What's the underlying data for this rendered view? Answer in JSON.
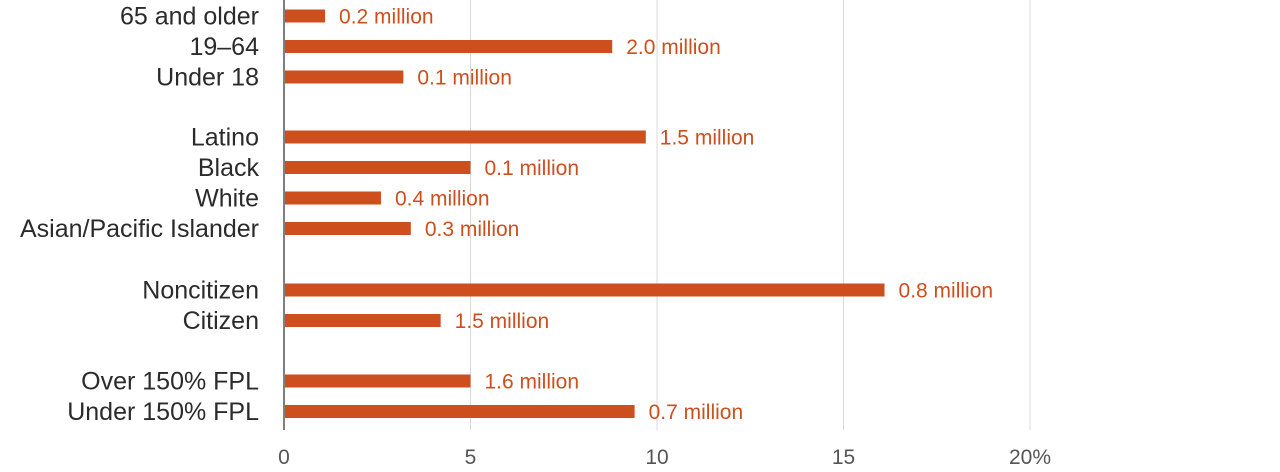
{
  "colors": {
    "bar": "#cd4f1e",
    "value_label": "#cd4f1e",
    "gridline": "#d9d9d9",
    "axis": "#555555",
    "category_label": "#2b2b2b",
    "tick_label": "#555555"
  },
  "chart_data": {
    "type": "bar",
    "orientation": "horizontal",
    "title": "",
    "xlabel": "",
    "ylabel": "",
    "xlim": [
      0,
      20
    ],
    "grid": true,
    "legend": "none",
    "x_ticks": [
      {
        "value": 0,
        "label": "0"
      },
      {
        "value": 5,
        "label": "5"
      },
      {
        "value": 10,
        "label": "10"
      },
      {
        "value": 15,
        "label": "15"
      },
      {
        "value": 20,
        "label": "20%"
      }
    ],
    "groups": [
      {
        "bars": [
          {
            "category": "65 and older",
            "value": 1.1,
            "label": "0.2 million"
          },
          {
            "category": "19–64",
            "value": 8.8,
            "label": "2.0 million"
          },
          {
            "category": "Under 18",
            "value": 3.2,
            "label": "0.1 million"
          }
        ]
      },
      {
        "bars": [
          {
            "category": "Latino",
            "value": 9.7,
            "label": "1.5 million"
          },
          {
            "category": "Black",
            "value": 5.0,
            "label": "0.1 million"
          },
          {
            "category": "White",
            "value": 2.6,
            "label": "0.4 million"
          },
          {
            "category": "Asian/Pacific Islander",
            "value": 3.4,
            "label": "0.3 million"
          }
        ]
      },
      {
        "bars": [
          {
            "category": "Noncitizen",
            "value": 16.1,
            "label": "0.8 million"
          },
          {
            "category": "Citizen",
            "value": 4.2,
            "label": "1.5 million"
          }
        ]
      },
      {
        "bars": [
          {
            "category": "Over 150% FPL",
            "value": 5.0,
            "label": "1.6 million"
          },
          {
            "category": "Under 150% FPL",
            "value": 9.4,
            "label": "0.7 million"
          }
        ]
      }
    ]
  }
}
